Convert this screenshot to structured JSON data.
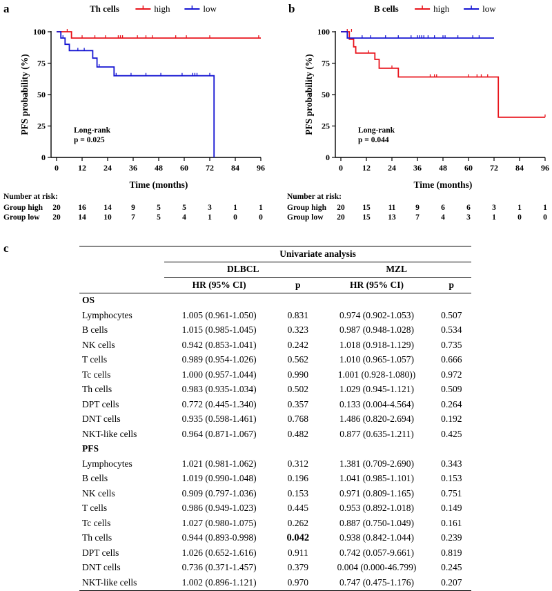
{
  "panels": {
    "a": "a",
    "b": "b",
    "c": "c"
  },
  "chart_data": [
    {
      "type": "line",
      "panel": "a",
      "title": "Th cells",
      "xlabel": "Time (months)",
      "ylabel": "PFS probability (%)",
      "xlim": [
        0,
        96
      ],
      "ylim": [
        0,
        100
      ],
      "xticks": [
        0,
        12,
        24,
        36,
        48,
        60,
        72,
        84,
        96
      ],
      "yticks": [
        0,
        25,
        50,
        75,
        100
      ],
      "legend_position": "top",
      "annotation": [
        "Long-rank",
        "p = 0.025"
      ],
      "series": [
        {
          "name": "high",
          "color": "#e8131b",
          "steps": [
            [
              0,
              100
            ],
            [
              7,
              100
            ],
            [
              7,
              95
            ],
            [
              96,
              95
            ]
          ],
          "censored": [
            [
              5,
              100
            ],
            [
              12,
              95
            ],
            [
              18,
              95
            ],
            [
              23,
              95
            ],
            [
              29,
              95
            ],
            [
              30,
              95
            ],
            [
              31,
              95
            ],
            [
              38,
              95
            ],
            [
              42,
              95
            ],
            [
              45,
              95
            ],
            [
              56,
              95
            ],
            [
              61,
              95
            ],
            [
              72,
              95
            ],
            [
              95,
              95
            ]
          ]
        },
        {
          "name": "low",
          "color": "#1414d2",
          "steps": [
            [
              0,
              100
            ],
            [
              2,
              100
            ],
            [
              2,
              95
            ],
            [
              4,
              95
            ],
            [
              4,
              90
            ],
            [
              6,
              90
            ],
            [
              6,
              85
            ],
            [
              17,
              85
            ],
            [
              17,
              79
            ],
            [
              19,
              79
            ],
            [
              19,
              72
            ],
            [
              27,
              72
            ],
            [
              27,
              65
            ],
            [
              74,
              65
            ],
            [
              74,
              0
            ]
          ],
          "censored": [
            [
              3,
              95
            ],
            [
              10,
              85
            ],
            [
              13,
              85
            ],
            [
              20,
              72
            ],
            [
              28,
              65
            ],
            [
              35,
              65
            ],
            [
              42,
              65
            ],
            [
              49,
              65
            ],
            [
              59,
              65
            ],
            [
              64,
              65
            ],
            [
              65,
              65
            ],
            [
              66,
              65
            ],
            [
              72,
              65
            ]
          ]
        }
      ],
      "risk_table": {
        "header": "Number at risk:",
        "rows": [
          {
            "label": "Group high",
            "values": [
              "20",
              "16",
              "14",
              "9",
              "5",
              "5",
              "3",
              "1",
              "1"
            ]
          },
          {
            "label": "Group low",
            "values": [
              "20",
              "14",
              "10",
              "7",
              "5",
              "4",
              "1",
              "0",
              "0"
            ]
          }
        ]
      }
    },
    {
      "type": "line",
      "panel": "b",
      "title": "B cells",
      "xlabel": "Time (months)",
      "ylabel": "PFS probability (%)",
      "xlim": [
        0,
        96
      ],
      "ylim": [
        0,
        100
      ],
      "xticks": [
        0,
        12,
        24,
        36,
        48,
        60,
        72,
        84,
        96
      ],
      "yticks": [
        0,
        25,
        50,
        75,
        100
      ],
      "legend_position": "top",
      "annotation": [
        "Long-rank",
        "p = 0.044"
      ],
      "series": [
        {
          "name": "high",
          "color": "#e8131b",
          "steps": [
            [
              0,
              100
            ],
            [
              4,
              100
            ],
            [
              4,
              94
            ],
            [
              6,
              94
            ],
            [
              6,
              88
            ],
            [
              7,
              88
            ],
            [
              7,
              83
            ],
            [
              16,
              83
            ],
            [
              16,
              78
            ],
            [
              18,
              78
            ],
            [
              18,
              71
            ],
            [
              27,
              71
            ],
            [
              27,
              64
            ],
            [
              74,
              64
            ],
            [
              74,
              32
            ],
            [
              96,
              32
            ]
          ],
          "censored": [
            [
              3,
              100
            ],
            [
              5,
              100
            ],
            [
              13,
              83
            ],
            [
              24,
              71
            ],
            [
              42,
              64
            ],
            [
              44,
              64
            ],
            [
              45,
              64
            ],
            [
              60,
              64
            ],
            [
              64,
              64
            ],
            [
              66,
              64
            ],
            [
              69,
              64
            ],
            [
              96,
              32
            ]
          ]
        },
        {
          "name": "low",
          "color": "#1414d2",
          "steps": [
            [
              0,
              100
            ],
            [
              3,
              100
            ],
            [
              3,
              95
            ],
            [
              72,
              95
            ]
          ],
          "censored": [
            [
              10,
              95
            ],
            [
              14,
              95
            ],
            [
              21,
              95
            ],
            [
              27,
              95
            ],
            [
              33,
              95
            ],
            [
              36,
              95
            ],
            [
              37,
              95
            ],
            [
              38,
              95
            ],
            [
              39,
              95
            ],
            [
              41,
              95
            ],
            [
              44,
              95
            ],
            [
              48,
              95
            ],
            [
              49,
              95
            ],
            [
              55,
              95
            ],
            [
              62,
              95
            ],
            [
              65,
              95
            ]
          ]
        }
      ],
      "risk_table": {
        "header": "Number at risk:",
        "rows": [
          {
            "label": "Group high",
            "values": [
              "20",
              "15",
              "11",
              "9",
              "6",
              "6",
              "3",
              "1",
              "1"
            ]
          },
          {
            "label": "Group low",
            "values": [
              "20",
              "15",
              "13",
              "7",
              "4",
              "3",
              "1",
              "0",
              "0"
            ]
          }
        ]
      }
    },
    {
      "type": "table",
      "panel": "c",
      "title": "Univariate analysis",
      "groups": [
        "DLBCL",
        "MZL"
      ],
      "columns": [
        "HR (95% CI)",
        "p",
        "HR (95% CI)",
        "p"
      ],
      "sections": [
        {
          "name": "OS",
          "rows": [
            {
              "label": "Lymphocytes",
              "dlbcl_hr": "1.005 (0.961-1.050)",
              "dlbcl_p": "0.831",
              "mzl_hr": "0.974 (0.902-1.053)",
              "mzl_p": "0.507"
            },
            {
              "label": "B cells",
              "dlbcl_hr": "1.015 (0.985-1.045)",
              "dlbcl_p": "0.323",
              "mzl_hr": "0.987 (0.948-1.028)",
              "mzl_p": "0.534"
            },
            {
              "label": "NK cells",
              "dlbcl_hr": "0.942 (0.853-1.041)",
              "dlbcl_p": "0.242",
              "mzl_hr": "1.018 (0.918-1.129)",
              "mzl_p": "0.735"
            },
            {
              "label": "T cells",
              "dlbcl_hr": "0.989 (0.954-1.026)",
              "dlbcl_p": "0.562",
              "mzl_hr": "1.010 (0.965-1.057)",
              "mzl_p": "0.666"
            },
            {
              "label": "Tc cells",
              "dlbcl_hr": "1.000 (0.957-1.044)",
              "dlbcl_p": "0.990",
              "mzl_hr": "1.001 (0.928-1.080))",
              "mzl_p": "0.972"
            },
            {
              "label": "Th cells",
              "dlbcl_hr": "0.983 (0.935-1.034)",
              "dlbcl_p": "0.502",
              "mzl_hr": "1.029 (0.945-1.121)",
              "mzl_p": "0.509"
            },
            {
              "label": "DPT cells",
              "dlbcl_hr": "0.772 (0.445-1.340)",
              "dlbcl_p": "0.357",
              "mzl_hr": "0.133 (0.004-4.564)",
              "mzl_p": "0.264"
            },
            {
              "label": "DNT cells",
              "dlbcl_hr": "0.935 (0.598-1.461)",
              "dlbcl_p": "0.768",
              "mzl_hr": "1.486 (0.820-2.694)",
              "mzl_p": "0.192"
            },
            {
              "label": "NKT-like cells",
              "dlbcl_hr": "0.964 (0.871-1.067)",
              "dlbcl_p": "0.482",
              "mzl_hr": "0.877 (0.635-1.211)",
              "mzl_p": "0.425"
            }
          ]
        },
        {
          "name": "PFS",
          "rows": [
            {
              "label": "Lymphocytes",
              "dlbcl_hr": "1.021 (0.981-1.062)",
              "dlbcl_p": "0.312",
              "mzl_hr": "1.381 (0.709-2.690)",
              "mzl_p": "0.343"
            },
            {
              "label": "B cells",
              "dlbcl_hr": "1.019 (0.990-1.048)",
              "dlbcl_p": "0.196",
              "mzl_hr": "1.041 (0.985-1.101)",
              "mzl_p": "0.153"
            },
            {
              "label": "NK cells",
              "dlbcl_hr": "0.909 (0.797-1.036)",
              "dlbcl_p": "0.153",
              "mzl_hr": "0.971 (0.809-1.165)",
              "mzl_p": "0.751"
            },
            {
              "label": "T cells",
              "dlbcl_hr": "0.986 (0.949-1.023)",
              "dlbcl_p": "0.445",
              "mzl_hr": "0.953 (0.892-1.018)",
              "mzl_p": "0.149"
            },
            {
              "label": "Tc cells",
              "dlbcl_hr": "1.027 (0.980-1.075)",
              "dlbcl_p": "0.262",
              "mzl_hr": "0.887 (0.750-1.049)",
              "mzl_p": "0.161"
            },
            {
              "label": "Th cells",
              "dlbcl_hr": "0.944 (0.893-0.998)",
              "dlbcl_p": "0.042",
              "dlbcl_p_bold": true,
              "mzl_hr": "0.938 (0.842-1.044)",
              "mzl_p": "0.239"
            },
            {
              "label": "DPT cells",
              "dlbcl_hr": "1.026 (0.652-1.616)",
              "dlbcl_p": "0.911",
              "mzl_hr": "0.742 (0.057-9.661)",
              "mzl_p": "0.819"
            },
            {
              "label": "DNT cells",
              "dlbcl_hr": "0.736 (0.371-1.457)",
              "dlbcl_p": "0.379",
              "mzl_hr": "0.004 (0.000-46.799)",
              "mzl_p": "0.245"
            },
            {
              "label": "NKT-like cells",
              "dlbcl_hr": "1.002 (0.896-1.121)",
              "dlbcl_p": "0.970",
              "mzl_hr": "0.747 (0.475-1.176)",
              "mzl_p": "0.207"
            }
          ]
        }
      ]
    }
  ]
}
